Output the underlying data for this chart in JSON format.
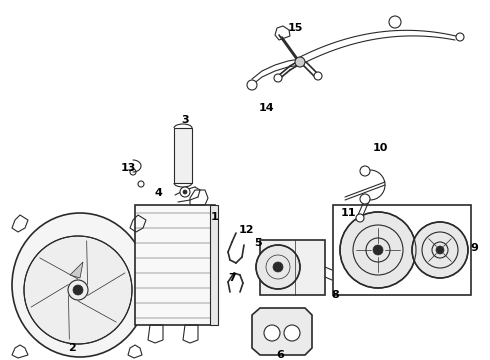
{
  "bg_color": "#ffffff",
  "line_color": "#2a2a2a",
  "label_color": "#000000",
  "label_fontsize": 7.5,
  "fig_width": 4.9,
  "fig_height": 3.6,
  "dpi": 100
}
